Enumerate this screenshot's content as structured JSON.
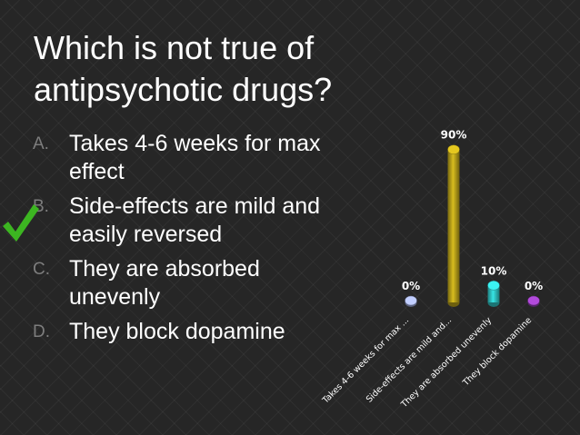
{
  "slide": {
    "title_lines": [
      "Which is not true of",
      "antipsychotic drugs?"
    ],
    "options": [
      {
        "letter": "A.",
        "text": "Takes 4-6 weeks for max effect",
        "lines": [
          "Takes 4-6 weeks for max",
          "effect"
        ],
        "correct": false
      },
      {
        "letter": "B.",
        "text": "Side-effects are mild and easily reversed",
        "lines": [
          "Side-effects are mild and",
          "easily reversed"
        ],
        "correct": true
      },
      {
        "letter": "C.",
        "text": "They are absorbed unevenly",
        "lines": [
          "They are absorbed",
          "unevenly"
        ],
        "correct": false
      },
      {
        "letter": "D.",
        "text": "They block dopamine",
        "lines": [
          "They block dopamine"
        ],
        "correct": false
      }
    ],
    "checkmark_icon": "checkmark-icon",
    "checkmark_color": "#3cb521"
  },
  "chart_data": {
    "type": "bar",
    "categories": [
      "Takes 4-6 weeks for max ...",
      "Side-effects are mild and...",
      "They are absorbed unevenly",
      "They block dopamine"
    ],
    "values": [
      0,
      90,
      10,
      0
    ],
    "value_labels": [
      "0%",
      "90%",
      "10%",
      "0%"
    ],
    "unit": "%",
    "ylim": [
      0,
      100
    ],
    "grid": false,
    "legend": "none",
    "colors": [
      "#9aa5d4",
      "#b7a019",
      "#2fc2c2",
      "#8e3bb0"
    ],
    "title": "",
    "xlabel": "",
    "ylabel": ""
  }
}
